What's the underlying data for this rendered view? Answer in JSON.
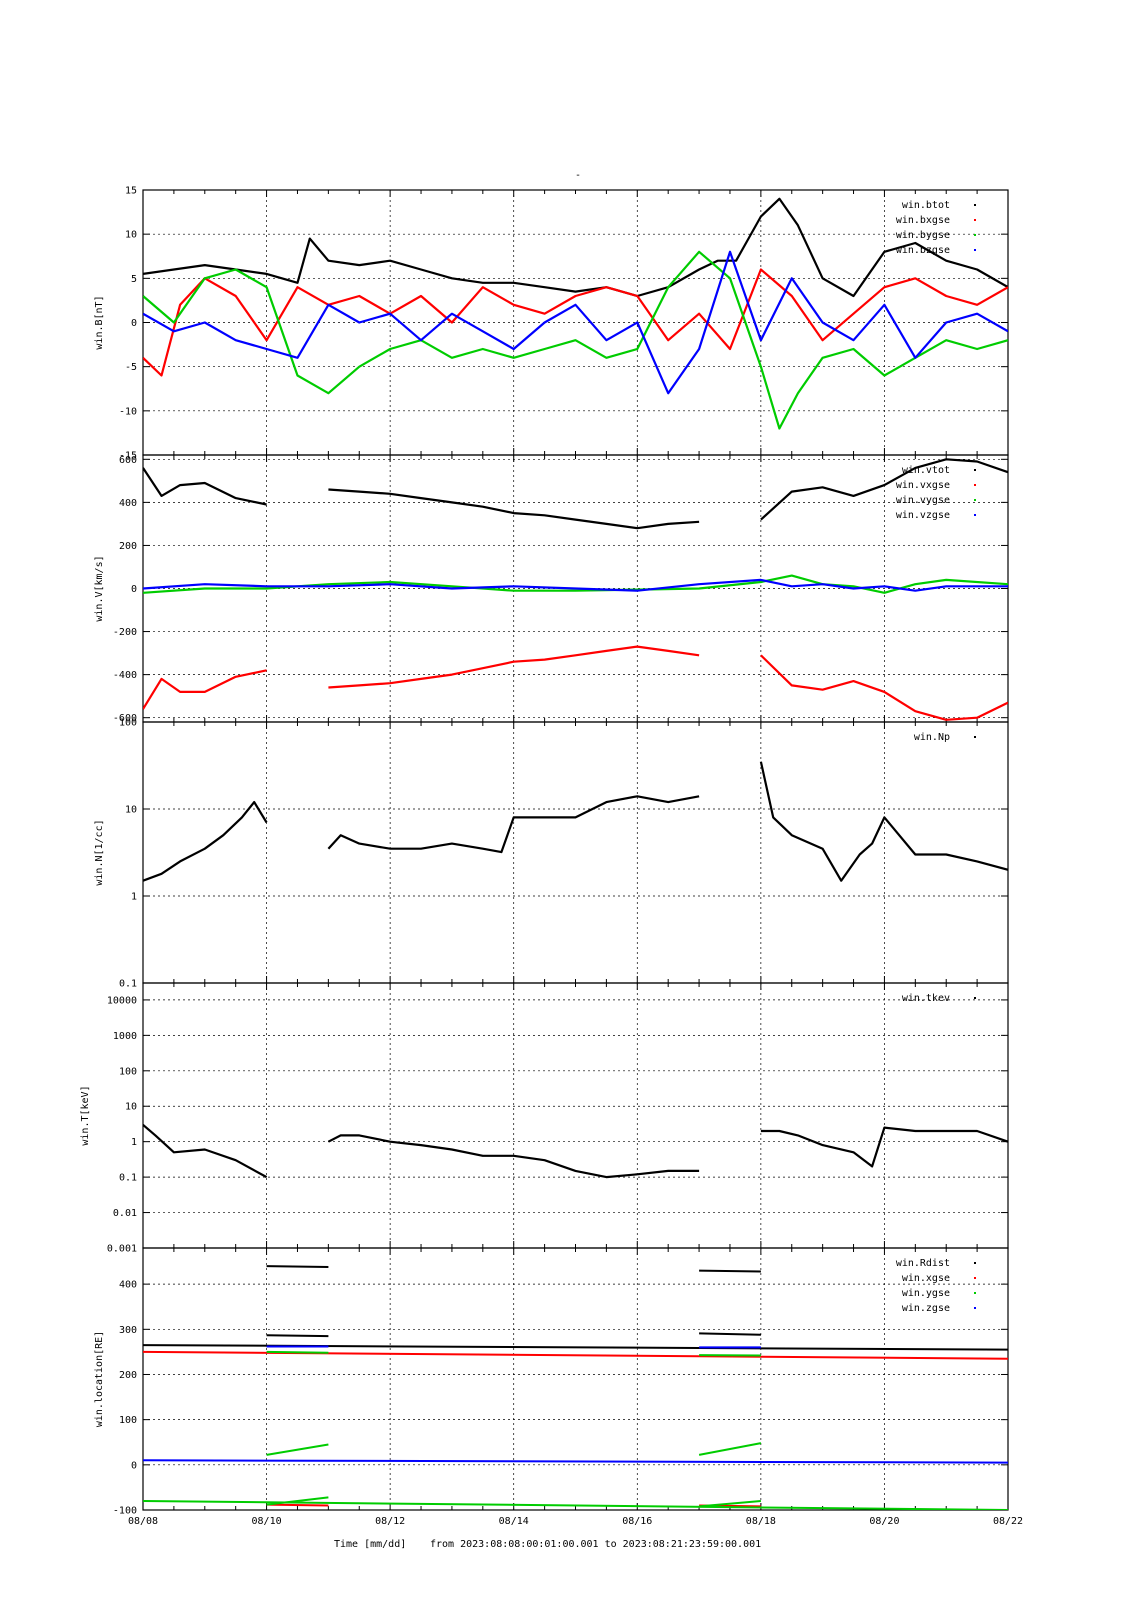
{
  "title": "-",
  "footer": {
    "xlabel": "Time [mm/dd]",
    "range_text": "from 2023:08:08:00:01:00.001  to  2023:08:21:23:59:00.001"
  },
  "x_ticks": [
    "08/08",
    "08/10",
    "08/12",
    "08/14",
    "08/16",
    "08/18",
    "08/20",
    "08/22"
  ],
  "colors": {
    "black": "#000000",
    "red": "#ff0000",
    "green": "#00cc00",
    "blue": "#0000ff"
  },
  "chart_data": [
    {
      "type": "scatter",
      "ylabel": "win.B[nT]",
      "ylim": [
        -15,
        15
      ],
      "yscale": "linear",
      "yticks": [
        -15,
        -10,
        -5,
        0,
        5,
        10,
        15
      ],
      "grid": true,
      "legend": "top-right",
      "x_days": [
        0,
        14
      ],
      "series": [
        {
          "name": "win.btot",
          "color": "#000000",
          "x": [
            0,
            0.5,
            1,
            1.5,
            2,
            2.5,
            2.7,
            3,
            3.5,
            4,
            4.5,
            5,
            5.5,
            6,
            6.5,
            7,
            7.5,
            8,
            8.5,
            9,
            9.3,
            9.6,
            10,
            10.3,
            10.6,
            11,
            11.5,
            12,
            12.5,
            13,
            13.5,
            14
          ],
          "y": [
            5.5,
            6,
            6.5,
            6,
            5.5,
            4.5,
            9.5,
            7,
            6.5,
            7,
            6,
            5,
            4.5,
            4.5,
            4,
            3.5,
            4,
            3,
            4,
            6,
            7,
            7,
            12,
            14,
            11,
            5,
            3,
            8,
            9,
            7,
            6,
            4
          ]
        },
        {
          "name": "win.bxgse",
          "color": "#ff0000",
          "x": [
            0,
            0.3,
            0.6,
            1,
            1.5,
            2,
            2.5,
            3,
            3.5,
            4,
            4.5,
            5,
            5.5,
            6,
            6.5,
            7,
            7.5,
            8,
            8.5,
            9,
            9.5,
            10,
            10.5,
            11,
            11.5,
            12,
            12.5,
            13,
            13.5,
            14
          ],
          "y": [
            -4,
            -6,
            2,
            5,
            3,
            -2,
            4,
            2,
            3,
            1,
            3,
            0,
            4,
            2,
            1,
            3,
            4,
            3,
            -2,
            1,
            -3,
            6,
            3,
            -2,
            1,
            4,
            5,
            3,
            2,
            4
          ]
        },
        {
          "name": "win.bygse",
          "color": "#00cc00",
          "x": [
            0,
            0.5,
            1,
            1.5,
            2,
            2.5,
            3,
            3.5,
            4,
            4.5,
            5,
            5.5,
            6,
            6.5,
            7,
            7.5,
            8,
            8.5,
            9,
            9.5,
            10,
            10.3,
            10.6,
            11,
            11.5,
            12,
            12.5,
            13,
            13.5,
            14
          ],
          "y": [
            3,
            0,
            5,
            6,
            4,
            -6,
            -8,
            -5,
            -3,
            -2,
            -4,
            -3,
            -4,
            -3,
            -2,
            -4,
            -3,
            4,
            8,
            5,
            -5,
            -12,
            -8,
            -4,
            -3,
            -6,
            -4,
            -2,
            -3,
            -2
          ]
        },
        {
          "name": "win.bzgse",
          "color": "#0000ff",
          "x": [
            0,
            0.5,
            1,
            1.5,
            2,
            2.5,
            3,
            3.5,
            4,
            4.5,
            5,
            5.5,
            6,
            6.5,
            7,
            7.5,
            8,
            8.5,
            9,
            9.5,
            10,
            10.5,
            11,
            11.5,
            12,
            12.5,
            13,
            13.5,
            14
          ],
          "y": [
            1,
            -1,
            0,
            -2,
            -3,
            -4,
            2,
            0,
            1,
            -2,
            1,
            -1,
            -3,
            0,
            2,
            -2,
            0,
            -8,
            -3,
            8,
            -2,
            5,
            0,
            -2,
            2,
            -4,
            0,
            1,
            -1
          ]
        }
      ]
    },
    {
      "type": "scatter",
      "ylabel": "win.V[km/s]",
      "ylim": [
        -620,
        620
      ],
      "yscale": "linear",
      "yticks": [
        -600,
        -400,
        -200,
        0,
        200,
        400,
        600
      ],
      "grid": true,
      "legend": "top-right",
      "x_days": [
        0,
        14
      ],
      "series": [
        {
          "name": "win.vtot",
          "color": "#000000",
          "x": [
            0,
            0.3,
            0.6,
            1,
            1.5,
            2,
            null,
            3,
            3.5,
            4,
            4.5,
            5,
            5.5,
            6,
            6.5,
            7,
            7.5,
            8,
            8.5,
            9,
            null,
            10,
            10.5,
            11,
            11.5,
            12,
            12.5,
            13,
            13.5,
            14
          ],
          "y": [
            560,
            430,
            480,
            490,
            420,
            390,
            null,
            460,
            450,
            440,
            420,
            400,
            380,
            350,
            340,
            320,
            300,
            280,
            300,
            310,
            null,
            320,
            450,
            470,
            430,
            480,
            560,
            600,
            590,
            540
          ]
        },
        {
          "name": "win.vxgse",
          "color": "#ff0000",
          "x": [
            0,
            0.3,
            0.6,
            1,
            1.5,
            2,
            null,
            3,
            3.5,
            4,
            4.5,
            5,
            5.5,
            6,
            6.5,
            7,
            7.5,
            8,
            8.5,
            9,
            null,
            10,
            10.5,
            11,
            11.5,
            12,
            12.5,
            13,
            13.5,
            14
          ],
          "y": [
            -560,
            -420,
            -480,
            -480,
            -410,
            -380,
            null,
            -460,
            -450,
            -440,
            -420,
            -400,
            -370,
            -340,
            -330,
            -310,
            -290,
            -270,
            -290,
            -310,
            null,
            -310,
            -450,
            -470,
            -430,
            -480,
            -570,
            -610,
            -600,
            -530
          ]
        },
        {
          "name": "win.vygse",
          "color": "#00cc00",
          "x": [
            0,
            1,
            2,
            3,
            4,
            5,
            6,
            7,
            8,
            9,
            10,
            10.5,
            11,
            11.5,
            12,
            12.5,
            13,
            14
          ],
          "y": [
            -20,
            0,
            0,
            20,
            30,
            10,
            -10,
            -10,
            -5,
            0,
            30,
            60,
            20,
            10,
            -20,
            20,
            40,
            20
          ]
        },
        {
          "name": "win.vzgse",
          "color": "#0000ff",
          "x": [
            0,
            1,
            2,
            3,
            4,
            5,
            6,
            7,
            8,
            9,
            10,
            10.5,
            11,
            11.5,
            12,
            12.5,
            13,
            14
          ],
          "y": [
            0,
            20,
            10,
            10,
            20,
            0,
            10,
            0,
            -10,
            20,
            40,
            10,
            20,
            0,
            10,
            -10,
            10,
            10
          ]
        }
      ]
    },
    {
      "type": "scatter",
      "ylabel": "win.N[1/cc]",
      "ylim": [
        0.1,
        100
      ],
      "yscale": "log",
      "yticks": [
        0.1,
        1,
        10,
        100
      ],
      "grid": true,
      "legend": "top-right",
      "x_days": [
        0,
        14
      ],
      "series": [
        {
          "name": "win.Np",
          "color": "#000000",
          "x": [
            0,
            0.3,
            0.6,
            1,
            1.3,
            1.6,
            1.8,
            2,
            null,
            3,
            3.2,
            3.5,
            4,
            4.5,
            5,
            5.5,
            5.8,
            6,
            6.5,
            7,
            7.5,
            8,
            8.5,
            9,
            null,
            10,
            10.2,
            10.5,
            11,
            11.3,
            11.6,
            11.8,
            12,
            12.5,
            13,
            13.5,
            14
          ],
          "y": [
            1.5,
            1.8,
            2.5,
            3.5,
            5,
            8,
            12,
            7,
            null,
            3.5,
            5,
            4,
            3.5,
            3.5,
            4,
            3.5,
            3.2,
            8,
            8,
            8,
            12,
            14,
            12,
            14,
            null,
            35,
            8,
            5,
            3.5,
            1.5,
            3,
            4,
            8,
            3,
            3,
            2.5,
            2
          ]
        }
      ]
    },
    {
      "type": "scatter",
      "ylabel": "win.T[keV]",
      "ylim": [
        0.001,
        30000
      ],
      "yscale": "log",
      "yticks": [
        0.001,
        0.01,
        0.1,
        1,
        10,
        100,
        1000,
        10000
      ],
      "grid": true,
      "legend": "top-right",
      "x_days": [
        0,
        14
      ],
      "series": [
        {
          "name": "win.tkev",
          "color": "#000000",
          "x": [
            0,
            0.2,
            0.5,
            1,
            1.5,
            2,
            null,
            3,
            3.2,
            3.5,
            4,
            4.5,
            5,
            5.5,
            6,
            6.5,
            7,
            7.5,
            8,
            8.5,
            9,
            null,
            10,
            10.3,
            10.6,
            11,
            11.5,
            11.8,
            12,
            12.5,
            13,
            13.5,
            14
          ],
          "y": [
            3,
            1.5,
            0.5,
            0.6,
            0.3,
            0.1,
            null,
            1,
            1.5,
            1.5,
            1,
            0.8,
            0.6,
            0.4,
            0.4,
            0.3,
            0.15,
            0.1,
            0.12,
            0.15,
            0.15,
            null,
            2,
            2,
            1.5,
            0.8,
            0.5,
            0.2,
            2.5,
            2,
            2,
            2,
            1
          ]
        }
      ]
    },
    {
      "type": "scatter",
      "ylabel": "win.location[RE]",
      "ylim": [
        -100,
        480
      ],
      "yscale": "linear",
      "yticks": [
        -100,
        0,
        100,
        200,
        300,
        400
      ],
      "grid": true,
      "legend": "top-right",
      "x_days": [
        0,
        14
      ],
      "series": [
        {
          "name": "win.Rdist",
          "color": "#000000",
          "segments": [
            {
              "x": [
                0,
                14
              ],
              "y": [
                265,
                255
              ]
            },
            {
              "x": [
                2,
                3
              ],
              "y": [
                440,
                438
              ]
            },
            {
              "x": [
                2,
                3
              ],
              "y": [
                287,
                285
              ]
            },
            {
              "x": [
                9,
                10
              ],
              "y": [
                430,
                428
              ]
            },
            {
              "x": [
                9,
                10
              ],
              "y": [
                291,
                288
              ]
            }
          ]
        },
        {
          "name": "win.xgse",
          "color": "#ff0000",
          "segments": [
            {
              "x": [
                0,
                14
              ],
              "y": [
                250,
                235
              ]
            },
            {
              "x": [
                2,
                3
              ],
              "y": [
                -88,
                -90
              ]
            },
            {
              "x": [
                9,
                10
              ],
              "y": [
                -90,
                -92
              ]
            }
          ]
        },
        {
          "name": "win.ygse",
          "color": "#00cc00",
          "segments": [
            {
              "x": [
                0,
                14
              ],
              "y": [
                -80,
                -100
              ]
            },
            {
              "x": [
                2,
                3
              ],
              "y": [
                22,
                45
              ]
            },
            {
              "x": [
                9,
                10
              ],
              "y": [
                22,
                48
              ]
            },
            {
              "x": [
                2,
                3
              ],
              "y": [
                250,
                248
              ]
            },
            {
              "x": [
                9,
                10
              ],
              "y": [
                243,
                242
              ]
            },
            {
              "x": [
                2,
                3
              ],
              "y": [
                -88,
                -72
              ]
            },
            {
              "x": [
                9,
                10
              ],
              "y": [
                -92,
                -80
              ]
            }
          ]
        },
        {
          "name": "win.zgse",
          "color": "#0000ff",
          "segments": [
            {
              "x": [
                0,
                14
              ],
              "y": [
                10,
                5
              ]
            },
            {
              "x": [
                2,
                3
              ],
              "y": [
                262,
                262
              ]
            },
            {
              "x": [
                9,
                10
              ],
              "y": [
                260,
                260
              ]
            }
          ]
        }
      ]
    }
  ]
}
